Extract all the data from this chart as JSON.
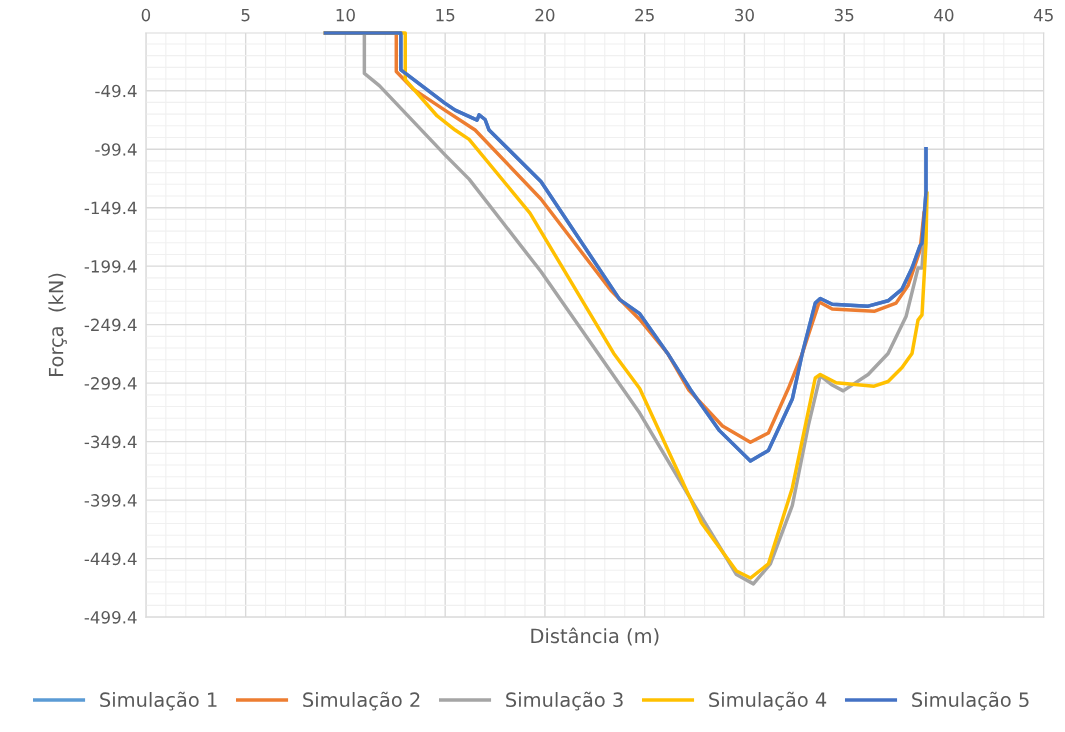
{
  "chart_data": {
    "type": "line",
    "xlabel": "Distância (m)",
    "ylabel": "Força  (kN)",
    "xlim": [
      0,
      45
    ],
    "xticks": [
      0,
      5,
      10,
      15,
      20,
      25,
      30,
      35,
      40,
      45
    ],
    "ylim": [
      -499.4,
      0
    ],
    "yticks": [
      -499.4,
      -449.4,
      -399.4,
      -349.4,
      -299.4,
      -249.4,
      -199.4,
      -149.4,
      -99.4,
      -49.4
    ],
    "grid": true,
    "legend": "bottom",
    "line_style": "solid",
    "marker": "none",
    "series": [
      {
        "name": "Simulação 1",
        "color": "#5b9bd5",
        "x": [
          9,
          12.78,
          12.78,
          14.98,
          15.5,
          16.6,
          16.7,
          17.0,
          17.2,
          19.8,
          23.75,
          24.75,
          26.15,
          27.3,
          28.75,
          30.3,
          31.2,
          32.4,
          32.9,
          33.55,
          33.8,
          34.4,
          36.2,
          37.2,
          37.9,
          38.4,
          38.8,
          38.9,
          39.1,
          39.1
        ],
        "values": [
          0,
          0,
          -31.6,
          -60,
          -66,
          -74.5,
          -70,
          -74,
          -83,
          -127,
          -228,
          -240,
          -274,
          -305,
          -340,
          -366,
          -357,
          -313,
          -274,
          -231,
          -227,
          -232,
          -233.6,
          -229,
          -219,
          -201,
          -182,
          -180,
          -136,
          -99
        ]
      },
      {
        "name": "Simulação 2",
        "color": "#ed7d31",
        "x": [
          9,
          12.55,
          12.55,
          13.4,
          14.98,
          16.5,
          19.8,
          23.3,
          24.75,
          26.15,
          27.2,
          28.9,
          30.3,
          31.2,
          32.2,
          32.9,
          33.75,
          34.4,
          36.5,
          37.6,
          38.2,
          38.8,
          39.0
        ],
        "values": [
          0,
          0,
          -33,
          -48,
          -66,
          -83,
          -142,
          -220,
          -245,
          -274,
          -305,
          -336,
          -350,
          -342,
          -304,
          -274,
          -230,
          -236,
          -238,
          -231,
          -216,
          -186,
          -154
        ]
      },
      {
        "name": "Simulação 3",
        "color": "#a5a5a5",
        "x": [
          9,
          10.95,
          10.95,
          11.7,
          14.98,
          16.2,
          19.8,
          24.75,
          27.5,
          29.6,
          30.45,
          31.3,
          32.4,
          33.2,
          33.8,
          34.4,
          34.95,
          36.2,
          37.2,
          38.1,
          38.7,
          38.9,
          39.1
        ],
        "values": [
          0,
          0,
          -34.6,
          -45,
          -104,
          -125,
          -204,
          -325,
          -404,
          -463,
          -471,
          -454,
          -404,
          -336,
          -293,
          -301,
          -306,
          -292,
          -274,
          -242.5,
          -201,
          -201,
          -151
        ]
      },
      {
        "name": "Simulação 4",
        "color": "#ffc000",
        "x": [
          9,
          13.0,
          13.0,
          14.6,
          15.5,
          16.2,
          19.25,
          22.35,
          23.45,
          24.75,
          27.85,
          29.6,
          30.3,
          31.2,
          32.4,
          33.55,
          33.8,
          34.6,
          36.5,
          37.2,
          37.9,
          38.4,
          38.7,
          38.9,
          39.1,
          39.15
        ],
        "values": [
          0,
          0,
          -40,
          -71,
          -83,
          -91,
          -154,
          -242.5,
          -274,
          -304,
          -419,
          -460,
          -466,
          -454,
          -389,
          -295,
          -292,
          -299,
          -302,
          -298,
          -286,
          -274,
          -245.5,
          -241,
          -180,
          -137
        ]
      },
      {
        "name": "Simulação 5",
        "color": "#4472c4",
        "x": [
          9,
          12.78,
          12.78,
          14.98,
          15.5,
          16.6,
          16.7,
          17.0,
          17.2,
          19.8,
          23.75,
          24.75,
          26.15,
          27.3,
          28.75,
          30.3,
          31.2,
          32.4,
          32.9,
          33.55,
          33.8,
          34.4,
          36.2,
          37.2,
          37.9,
          38.4,
          38.8,
          38.9,
          39.1,
          39.1
        ],
        "values": [
          0,
          0,
          -31.6,
          -60,
          -66,
          -74.5,
          -70,
          -74,
          -83,
          -127,
          -228,
          -240,
          -274,
          -305,
          -340,
          -366,
          -357,
          -313,
          -274,
          -231,
          -227,
          -232,
          -233.6,
          -229,
          -219,
          -201,
          -182,
          -180,
          -136,
          -99
        ]
      }
    ]
  }
}
